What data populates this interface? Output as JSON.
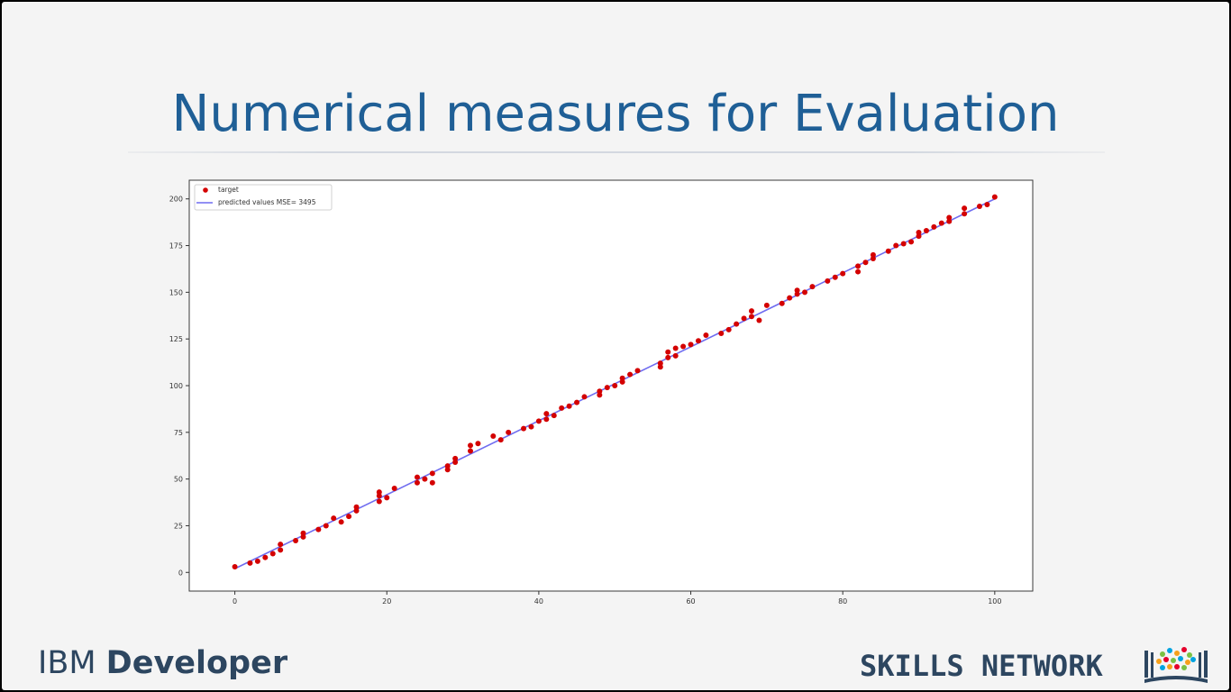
{
  "slide": {
    "title": "Numerical measures for Evaluation",
    "title_color": "#1f5f96"
  },
  "footer": {
    "ibm_logo_part1": "IBM ",
    "ibm_logo_part2": "Developer",
    "skills_logo": "SKILLS NETWORK",
    "skills_icon": "books-icon",
    "text_color": "#2d4660"
  },
  "chart_data": {
    "type": "scatter",
    "title": "",
    "xlabel": "",
    "ylabel": "",
    "xlim": [
      -6,
      105
    ],
    "ylim": [
      -10,
      210
    ],
    "xticks": [
      0,
      20,
      40,
      60,
      80,
      100
    ],
    "yticks": [
      0,
      25,
      50,
      75,
      100,
      125,
      150,
      175,
      200
    ],
    "grid": false,
    "legend_position": "top-left",
    "series": [
      {
        "name": "target",
        "kind": "scatter",
        "color": "#d40000",
        "x": [
          0,
          2,
          3,
          4,
          5,
          6,
          6,
          8,
          9,
          9,
          11,
          12,
          13,
          14,
          15,
          16,
          16,
          19,
          19,
          19,
          20,
          21,
          24,
          24,
          25,
          26,
          26,
          28,
          28,
          29,
          29,
          31,
          31,
          32,
          34,
          35,
          36,
          38,
          39,
          40,
          41,
          41,
          42,
          43,
          44,
          45,
          46,
          48,
          48,
          49,
          50,
          51,
          51,
          52,
          53,
          56,
          56,
          57,
          57,
          58,
          58,
          59,
          60,
          61,
          62,
          64,
          65,
          66,
          67,
          68,
          68,
          69,
          70,
          72,
          73,
          74,
          74,
          75,
          76,
          78,
          79,
          80,
          82,
          82,
          83,
          84,
          84,
          86,
          87,
          88,
          89,
          90,
          90,
          91,
          92,
          93,
          94,
          94,
          96,
          96,
          98,
          99,
          100
        ],
        "y": [
          3,
          5,
          6,
          8,
          10,
          15,
          12,
          17,
          21,
          19,
          23,
          25,
          29,
          27,
          30,
          33,
          35,
          38,
          41,
          43,
          40,
          45,
          51,
          48,
          50,
          53,
          48,
          55,
          57,
          59,
          61,
          65,
          68,
          69,
          73,
          71,
          75,
          77,
          78,
          81,
          82,
          85,
          84,
          88,
          89,
          91,
          94,
          95,
          97,
          99,
          100,
          102,
          104,
          106,
          108,
          110,
          112,
          115,
          118,
          116,
          120,
          121,
          122,
          124,
          127,
          128,
          130,
          133,
          136,
          137,
          140,
          135,
          143,
          144,
          147,
          151,
          149,
          150,
          153,
          156,
          158,
          160,
          161,
          164,
          166,
          168,
          170,
          172,
          175,
          176,
          177,
          180,
          182,
          183,
          185,
          187,
          188,
          190,
          192,
          195,
          196,
          197,
          201
        ]
      },
      {
        "name": "predicted values MSE= 3495",
        "kind": "line",
        "color": "#6f6cf0",
        "x": [
          0,
          100
        ],
        "y": [
          2,
          200
        ]
      }
    ]
  }
}
